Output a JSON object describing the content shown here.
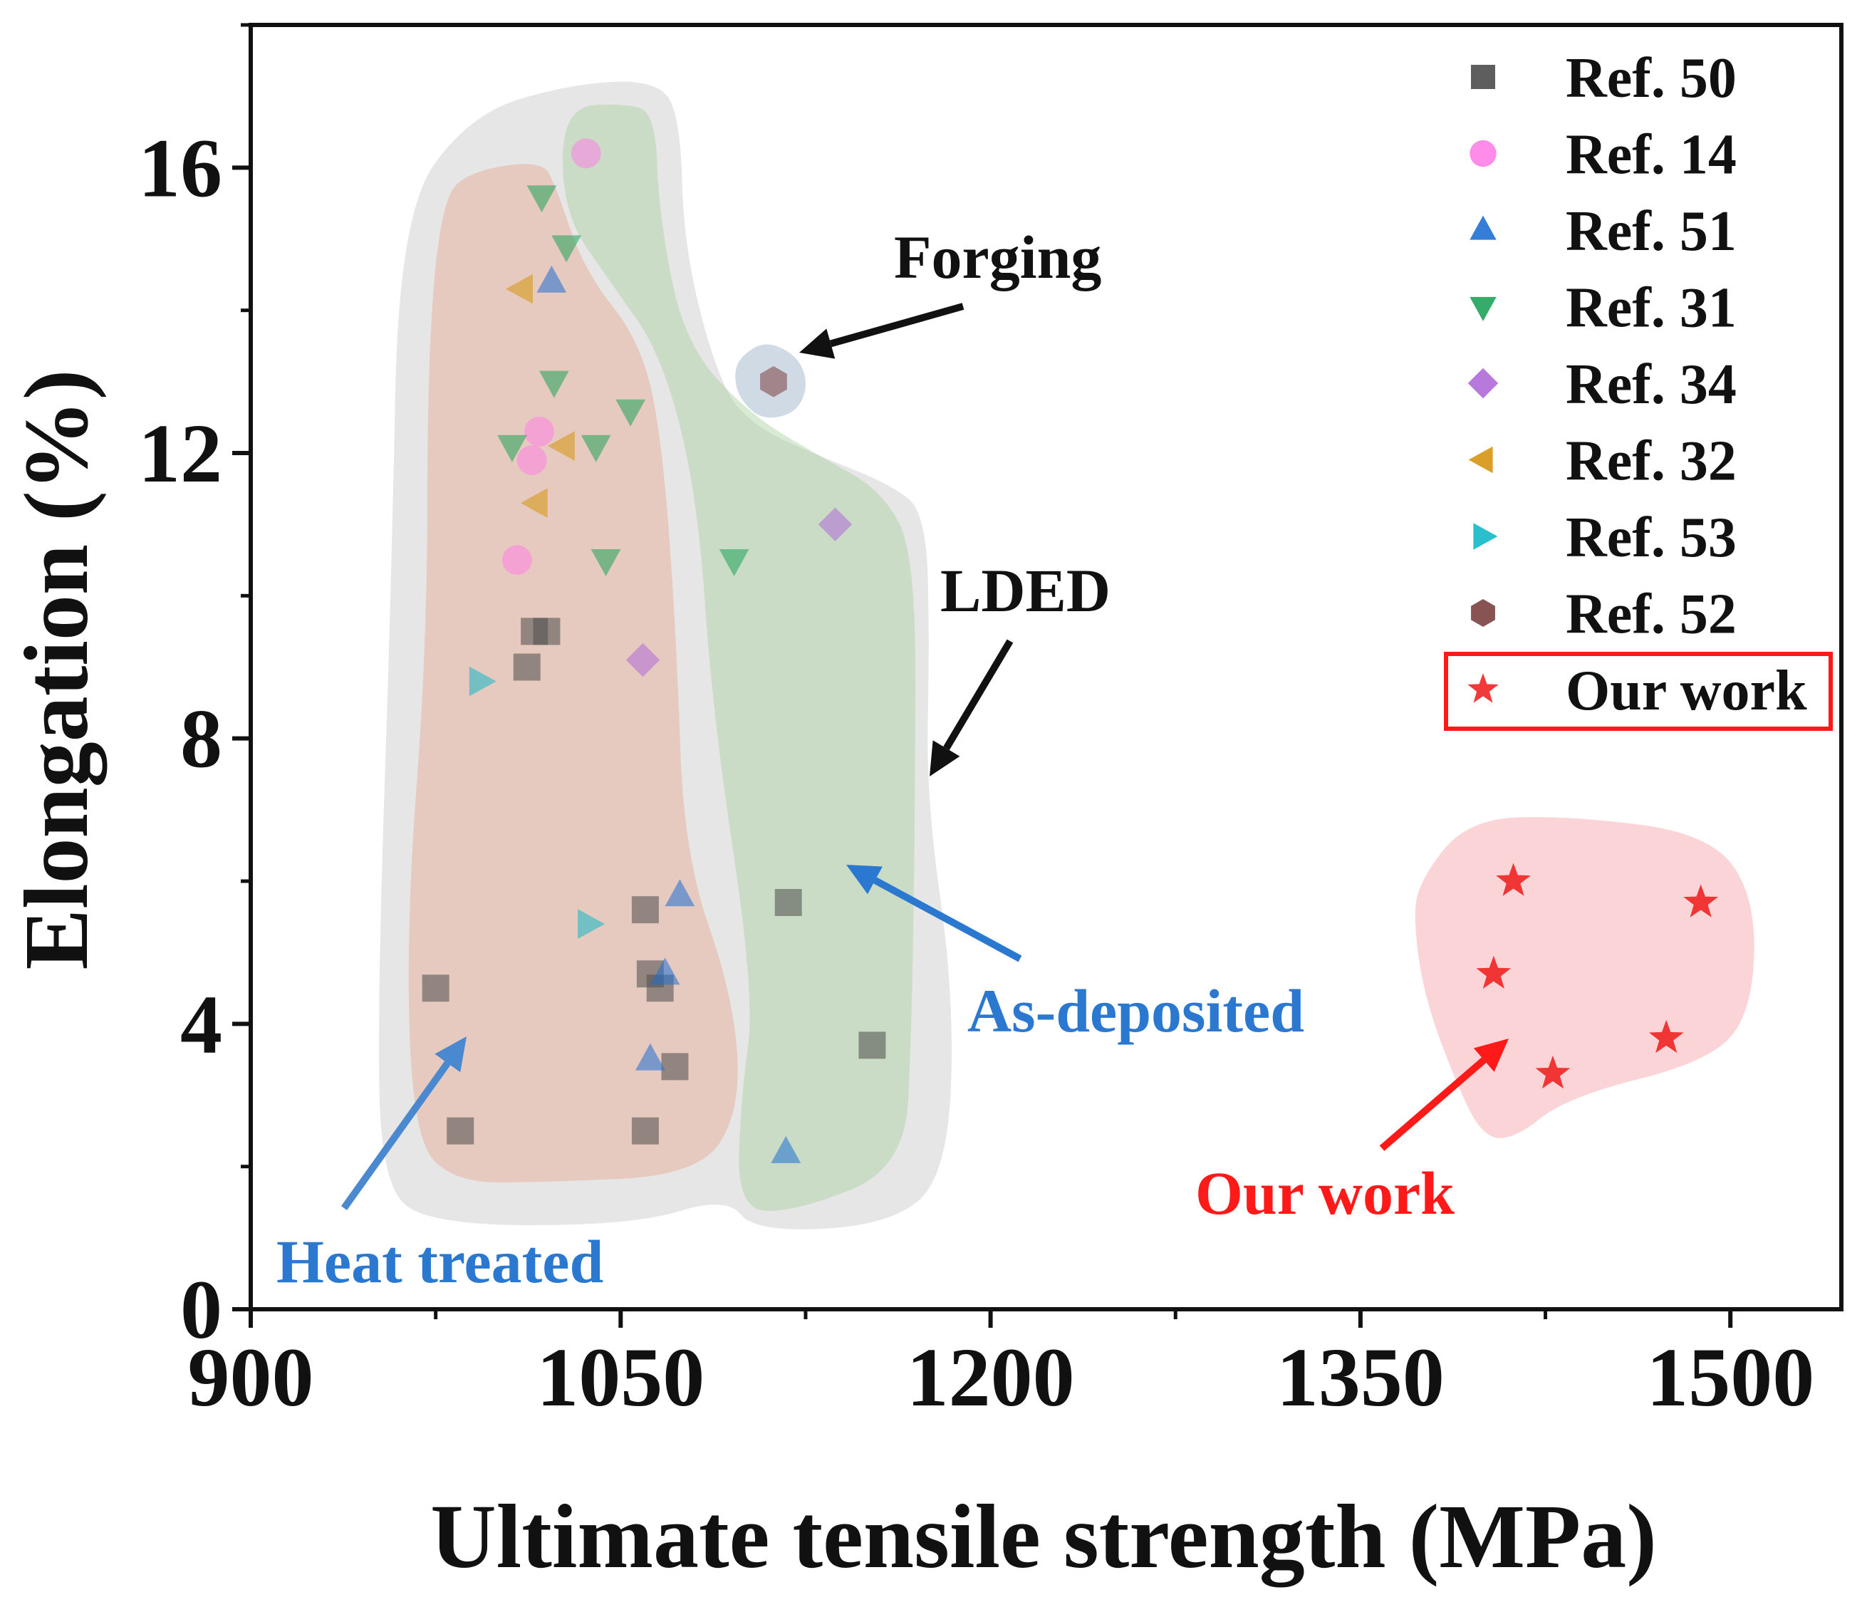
{
  "chart_data": {
    "type": "scatter",
    "title": "",
    "xlabel": "Ultimate tensile strength (MPa)",
    "ylabel": "Elongation (%)",
    "xlim": [
      900,
      1545
    ],
    "ylim": [
      0,
      18
    ],
    "xticks": [
      900,
      1050,
      1200,
      1350,
      1500
    ],
    "yticks": [
      0,
      4,
      8,
      12,
      16
    ],
    "legend_position": "top-right",
    "series": [
      {
        "name": "Ref. 50",
        "marker": "square",
        "color": "#4d4d4d",
        "points": [
          [
            1020,
            9.5
          ],
          [
            1015,
            9.5
          ],
          [
            1012,
            9.0
          ],
          [
            1060,
            5.6
          ],
          [
            1062,
            4.7
          ],
          [
            1066,
            4.5
          ],
          [
            1072,
            3.4
          ],
          [
            975,
            4.5
          ],
          [
            985,
            2.5
          ],
          [
            1060,
            2.5
          ],
          [
            1118,
            5.7
          ],
          [
            1152,
            3.7
          ]
        ]
      },
      {
        "name": "Ref. 14",
        "marker": "circle",
        "color": "#ff7fe6",
        "points": [
          [
            1036,
            16.2
          ],
          [
            1017,
            12.3
          ],
          [
            1014,
            11.9
          ],
          [
            1008,
            10.5
          ]
        ]
      },
      {
        "name": "Ref. 51",
        "marker": "triangle-up",
        "color": "#1f6fd1",
        "points": [
          [
            1022,
            14.4
          ],
          [
            1074,
            5.8
          ],
          [
            1068,
            4.7
          ],
          [
            1062,
            3.5
          ],
          [
            1117,
            2.2
          ]
        ]
      },
      {
        "name": "Ref. 31",
        "marker": "triangle-down",
        "color": "#1fa35a",
        "points": [
          [
            1018,
            15.6
          ],
          [
            1028,
            14.9
          ],
          [
            1023,
            13.0
          ],
          [
            1006,
            12.1
          ],
          [
            1040,
            12.1
          ],
          [
            1054,
            12.6
          ],
          [
            1044,
            10.5
          ],
          [
            1096,
            10.5
          ]
        ]
      },
      {
        "name": "Ref. 34",
        "marker": "diamond",
        "color": "#b06ad8",
        "points": [
          [
            1137,
            11.0
          ],
          [
            1059,
            9.1
          ]
        ]
      },
      {
        "name": "Ref. 32",
        "marker": "triangle-left",
        "color": "#d6950e",
        "points": [
          [
            1010,
            14.3
          ],
          [
            1027,
            12.1
          ],
          [
            1016,
            11.3
          ]
        ]
      },
      {
        "name": "Ref. 53",
        "marker": "triangle-right",
        "color": "#14b8c8",
        "points": [
          [
            993,
            8.8
          ],
          [
            1037,
            5.4
          ]
        ]
      },
      {
        "name": "Ref. 52",
        "marker": "hexagon",
        "color": "#7b4040",
        "points": [
          [
            1112,
            13.0
          ]
        ]
      },
      {
        "name": "Our work",
        "marker": "star",
        "color": "#f02323",
        "points": [
          [
            1412,
            6.0
          ],
          [
            1488,
            5.7
          ],
          [
            1404,
            4.7
          ],
          [
            1474,
            3.8
          ],
          [
            1428,
            3.3
          ]
        ]
      }
    ],
    "regions": [
      {
        "name": "LDED",
        "color": "#c8c8c8",
        "opacity": 0.45
      },
      {
        "name": "Heat treated",
        "color": "#e8a890",
        "opacity": 0.45
      },
      {
        "name": "As-deposited",
        "color": "#a9d0a0",
        "opacity": 0.45
      },
      {
        "name": "Forging",
        "color": "#a8bcd0",
        "opacity": 0.55
      },
      {
        "name": "Our work",
        "color": "#f7a0a8",
        "opacity": 0.45
      }
    ],
    "annotations": [
      {
        "key": "forging",
        "text": "Forging",
        "color": "#111111"
      },
      {
        "key": "lded",
        "text": "LDED",
        "color": "#111111"
      },
      {
        "key": "as_deposited",
        "text": "As-deposited",
        "color": "#2a78cf"
      },
      {
        "key": "heat_treated",
        "text": "Heat treated",
        "color": "#2a78cf"
      },
      {
        "key": "our_work",
        "text": "Our work",
        "color": "#ff1a1a"
      }
    ],
    "highlight_legend_entry": "Our work"
  }
}
